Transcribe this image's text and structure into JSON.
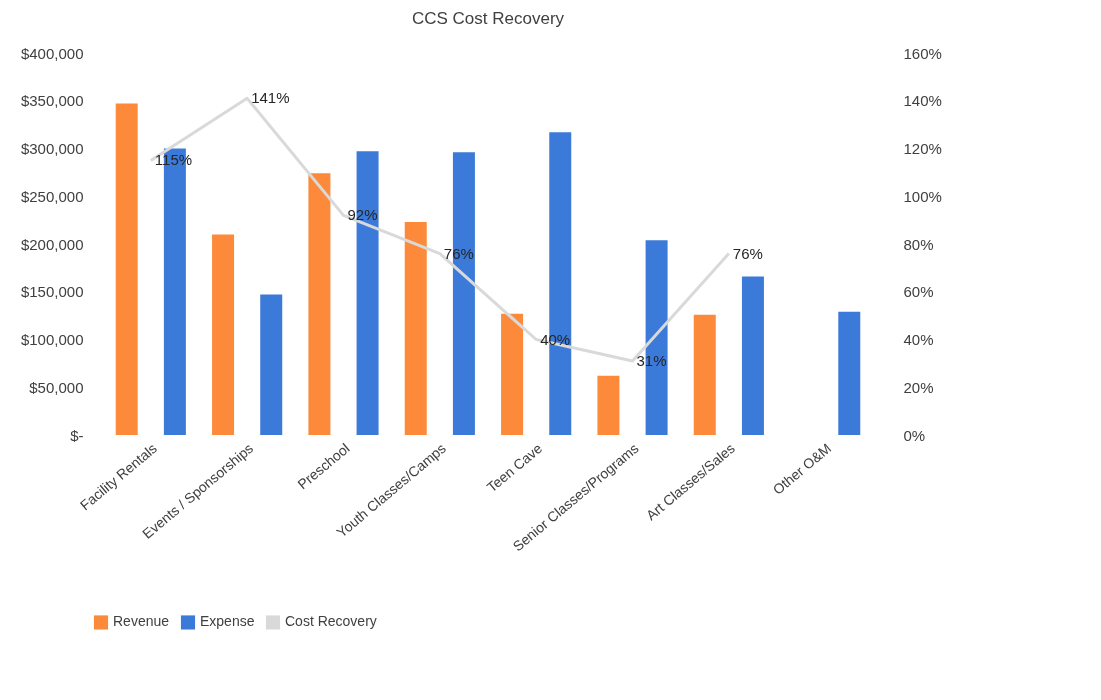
{
  "chart_data": {
    "type": "bar",
    "title": "CCS Cost Recovery",
    "categories": [
      "Facility Rentals",
      "Events / Sponsorships",
      "Preschool",
      "Youth Classes/Camps",
      "Teen Cave",
      "Senior Classes/Programs",
      "Art Classes/Sales",
      "Other O&M"
    ],
    "series": [
      {
        "name": "Revenue",
        "color": "#fd8a3a",
        "values": [
          347000,
          210000,
          274000,
          223000,
          127000,
          62000,
          126000,
          null
        ]
      },
      {
        "name": "Expense",
        "color": "#3b7ad9",
        "values": [
          300000,
          147000,
          297000,
          296000,
          317000,
          204000,
          166000,
          129000
        ]
      },
      {
        "name": "Cost Recovery",
        "type": "line",
        "axis": "y2",
        "color": "#d9d9d9",
        "values": [
          115,
          141,
          92,
          76,
          40,
          31,
          76,
          null
        ],
        "value_labels": [
          "115%",
          "141%",
          "92%",
          "76%",
          "40%",
          "31%",
          "76%",
          null
        ]
      }
    ],
    "ylim": [
      0,
      400000
    ],
    "yticks": [
      {
        "value": 0,
        "label": "$-"
      },
      {
        "value": 50000,
        "label": "$50,000"
      },
      {
        "value": 100000,
        "label": "$100,000"
      },
      {
        "value": 150000,
        "label": "$150,000"
      },
      {
        "value": 200000,
        "label": "$200,000"
      },
      {
        "value": 250000,
        "label": "$250,000"
      },
      {
        "value": 300000,
        "label": "$300,000"
      },
      {
        "value": 350000,
        "label": "$350,000"
      },
      {
        "value": 400000,
        "label": "$400,000"
      }
    ],
    "y2lim": [
      0,
      160
    ],
    "y2ticks": [
      {
        "value": 0,
        "label": "0%"
      },
      {
        "value": 20,
        "label": "20%"
      },
      {
        "value": 40,
        "label": "40%"
      },
      {
        "value": 60,
        "label": "60%"
      },
      {
        "value": 80,
        "label": "80%"
      },
      {
        "value": 100,
        "label": "100%"
      },
      {
        "value": 120,
        "label": "120%"
      },
      {
        "value": 140,
        "label": "140%"
      },
      {
        "value": 160,
        "label": "160%"
      }
    ],
    "legend": "bottom"
  }
}
